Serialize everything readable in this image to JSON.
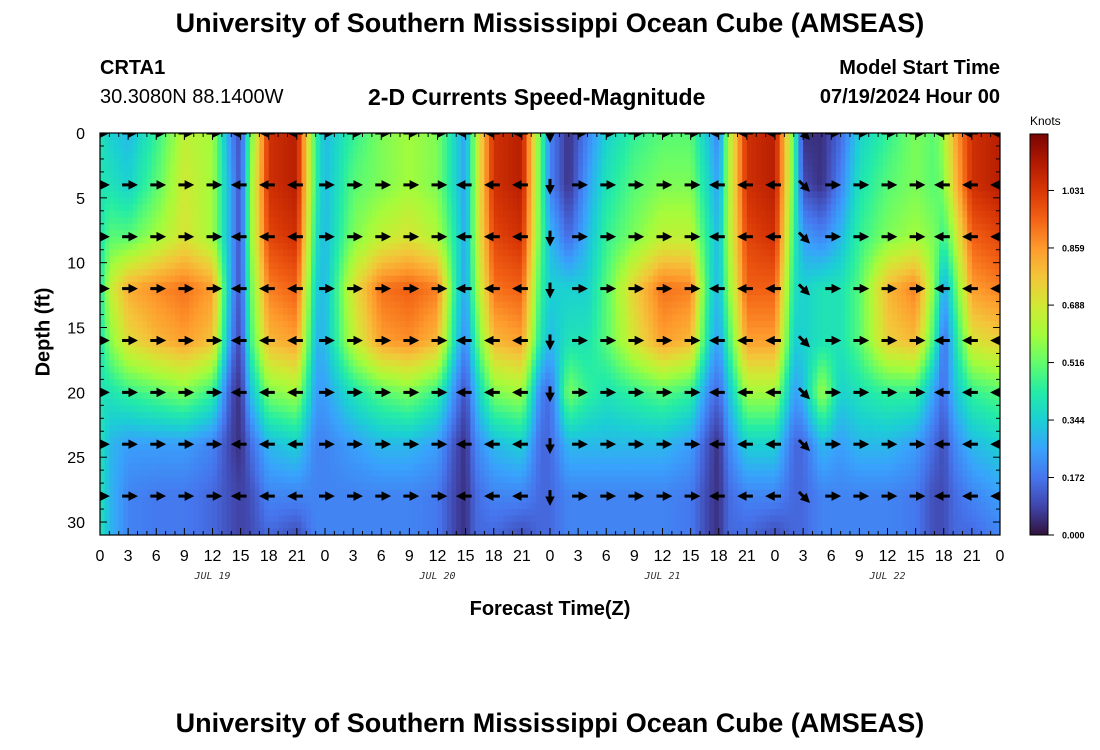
{
  "header": {
    "title": "University of Southern Mississippi Ocean Cube (AMSEAS)",
    "station_id": "CRTA1",
    "station_coords": "30.3080N  88.1400W",
    "plot_title": "2-D Currents Speed-Magnitude",
    "model_label": "Model Start Time",
    "model_date": "07/19/2024 Hour 00"
  },
  "footer": {
    "title": "University of Southern Mississippi Ocean Cube (AMSEAS)"
  },
  "colors": {
    "scale": [
      "#30123b",
      "#4145ab",
      "#4675ed",
      "#39a2fc",
      "#1bcfd4",
      "#24eca6",
      "#61fc6c",
      "#a4fc3b",
      "#d1e834",
      "#f3c63a",
      "#fe9b2d",
      "#f36315",
      "#d93806",
      "#b11901",
      "#7a0402"
    ]
  },
  "chart_data": {
    "type": "heatmap",
    "title": "2-D Currents Speed-Magnitude",
    "xlabel": "Forecast Time(Z)",
    "ylabel": "Depth (ft)",
    "x_range_hours": [
      0,
      96
    ],
    "x_tick_hours": [
      0,
      3,
      6,
      9,
      12,
      15,
      18,
      21,
      24,
      27,
      30,
      33,
      36,
      39,
      42,
      45,
      48,
      51,
      54,
      57,
      60,
      63,
      66,
      69,
      72,
      75,
      78,
      81,
      84,
      87,
      90,
      93,
      96
    ],
    "x_tick_labels": [
      "0",
      "3",
      "6",
      "9",
      "12",
      "15",
      "18",
      "21",
      "0",
      "3",
      "6",
      "9",
      "12",
      "15",
      "18",
      "21",
      "0",
      "3",
      "6",
      "9",
      "12",
      "15",
      "18",
      "21",
      "0",
      "3",
      "6",
      "9",
      "12",
      "15",
      "18",
      "21",
      "0"
    ],
    "date_labels": [
      {
        "hour": 12,
        "label": "JUL 19"
      },
      {
        "hour": 36,
        "label": "JUL 20"
      },
      {
        "hour": 60,
        "label": "JUL 21"
      },
      {
        "hour": 84,
        "label": "JUL 22"
      }
    ],
    "y_range_ft": [
      0,
      31
    ],
    "y_ticks": [
      0,
      5,
      10,
      15,
      20,
      25,
      30
    ],
    "y_tick_labels": [
      "0",
      "5",
      "10",
      "15",
      "20",
      "25",
      "30"
    ],
    "colorbar": {
      "unit": "Knots",
      "range": [
        0,
        1.2
      ],
      "ticks": [
        0.0,
        0.172,
        0.344,
        0.516,
        0.688,
        0.859,
        1.031
      ],
      "tick_labels": [
        "0.000",
        "0.172",
        "0.344",
        "0.516",
        "0.688",
        "0.859",
        "1.031"
      ]
    },
    "depths_ft": [
      0,
      4,
      8,
      12,
      16,
      20,
      24,
      28,
      31
    ],
    "speed_profiles": [
      {
        "hour": 0,
        "values": [
          0.4,
          0.4,
          0.4,
          0.4,
          0.4,
          0.4,
          0.4,
          0.4,
          0.4
        ]
      },
      {
        "hour": 1,
        "values": [
          0.35,
          0.4,
          0.5,
          0.65,
          0.55,
          0.4,
          0.3,
          0.3,
          0.3
        ]
      },
      {
        "hour": 3,
        "values": [
          0.3,
          0.35,
          0.5,
          0.82,
          0.72,
          0.45,
          0.25,
          0.2,
          0.2
        ]
      },
      {
        "hour": 6,
        "values": [
          0.45,
          0.5,
          0.6,
          0.88,
          0.8,
          0.5,
          0.25,
          0.18,
          0.18
        ]
      },
      {
        "hour": 9,
        "values": [
          0.65,
          0.68,
          0.7,
          0.92,
          0.85,
          0.55,
          0.25,
          0.18,
          0.18
        ]
      },
      {
        "hour": 12,
        "values": [
          0.6,
          0.6,
          0.6,
          0.85,
          0.78,
          0.45,
          0.2,
          0.15,
          0.15
        ]
      },
      {
        "hour": 14,
        "values": [
          0.2,
          0.25,
          0.25,
          0.25,
          0.2,
          0.1,
          0.08,
          0.1,
          0.1
        ]
      },
      {
        "hour": 15,
        "values": [
          0.1,
          0.1,
          0.1,
          0.1,
          0.08,
          0.05,
          0.05,
          0.08,
          0.08
        ]
      },
      {
        "hour": 16,
        "values": [
          0.5,
          0.55,
          0.55,
          0.5,
          0.45,
          0.3,
          0.15,
          0.1,
          0.1
        ]
      },
      {
        "hour": 18,
        "values": [
          1.05,
          1.05,
          1.0,
          0.9,
          0.8,
          0.55,
          0.3,
          0.2,
          0.15
        ]
      },
      {
        "hour": 21,
        "values": [
          1.1,
          1.1,
          1.05,
          0.95,
          0.85,
          0.6,
          0.35,
          0.2,
          0.1
        ]
      },
      {
        "hour": 23,
        "values": [
          0.45,
          0.45,
          0.4,
          0.35,
          0.3,
          0.25,
          0.2,
          0.2,
          0.2
        ]
      },
      {
        "hour": 24,
        "values": [
          0.3,
          0.3,
          0.3,
          0.3,
          0.3,
          0.25,
          0.2,
          0.2,
          0.2
        ]
      },
      {
        "hour": 27,
        "values": [
          0.45,
          0.5,
          0.55,
          0.7,
          0.65,
          0.4,
          0.25,
          0.2,
          0.2
        ]
      },
      {
        "hour": 30,
        "values": [
          0.55,
          0.55,
          0.65,
          0.92,
          0.85,
          0.5,
          0.3,
          0.2,
          0.2
        ]
      },
      {
        "hour": 33,
        "values": [
          0.6,
          0.6,
          0.7,
          0.95,
          0.88,
          0.55,
          0.3,
          0.2,
          0.2
        ]
      },
      {
        "hour": 36,
        "values": [
          0.55,
          0.55,
          0.62,
          0.9,
          0.8,
          0.45,
          0.25,
          0.18,
          0.18
        ]
      },
      {
        "hour": 38,
        "values": [
          0.35,
          0.35,
          0.4,
          0.4,
          0.35,
          0.2,
          0.1,
          0.08,
          0.08
        ]
      },
      {
        "hour": 39,
        "values": [
          0.25,
          0.25,
          0.25,
          0.25,
          0.2,
          0.1,
          0.05,
          0.05,
          0.05
        ]
      },
      {
        "hour": 40,
        "values": [
          0.6,
          0.6,
          0.6,
          0.55,
          0.45,
          0.3,
          0.2,
          0.15,
          0.15
        ]
      },
      {
        "hour": 42,
        "values": [
          1.05,
          1.05,
          1.0,
          0.92,
          0.8,
          0.55,
          0.3,
          0.2,
          0.15
        ]
      },
      {
        "hour": 45,
        "values": [
          1.1,
          1.1,
          1.05,
          0.95,
          0.85,
          0.6,
          0.35,
          0.2,
          0.1
        ]
      },
      {
        "hour": 47,
        "values": [
          0.5,
          0.5,
          0.5,
          0.45,
          0.4,
          0.2,
          0.15,
          0.15,
          0.15
        ]
      },
      {
        "hour": 48,
        "values": [
          0.2,
          0.2,
          0.3,
          0.35,
          0.3,
          0.15,
          0.15,
          0.15,
          0.15
        ]
      },
      {
        "hour": 50,
        "values": [
          0.05,
          0.05,
          0.15,
          0.35,
          0.4,
          0.55,
          0.3,
          0.2,
          0.2
        ]
      },
      {
        "hour": 52,
        "values": [
          0.2,
          0.25,
          0.3,
          0.35,
          0.4,
          0.45,
          0.3,
          0.2,
          0.2
        ]
      },
      {
        "hour": 54,
        "values": [
          0.35,
          0.4,
          0.45,
          0.5,
          0.5,
          0.4,
          0.3,
          0.2,
          0.2
        ]
      },
      {
        "hour": 57,
        "values": [
          0.45,
          0.5,
          0.55,
          0.75,
          0.7,
          0.45,
          0.3,
          0.2,
          0.2
        ]
      },
      {
        "hour": 60,
        "values": [
          0.5,
          0.55,
          0.65,
          0.92,
          0.85,
          0.5,
          0.3,
          0.2,
          0.2
        ]
      },
      {
        "hour": 63,
        "values": [
          0.5,
          0.55,
          0.65,
          0.9,
          0.8,
          0.45,
          0.25,
          0.18,
          0.18
        ]
      },
      {
        "hour": 65,
        "values": [
          0.3,
          0.35,
          0.4,
          0.4,
          0.35,
          0.2,
          0.1,
          0.08,
          0.08
        ]
      },
      {
        "hour": 66,
        "values": [
          0.2,
          0.25,
          0.3,
          0.3,
          0.25,
          0.15,
          0.05,
          0.05,
          0.05
        ]
      },
      {
        "hour": 67,
        "values": [
          0.6,
          0.6,
          0.6,
          0.55,
          0.45,
          0.3,
          0.2,
          0.15,
          0.15
        ]
      },
      {
        "hour": 69,
        "values": [
          1.05,
          1.05,
          1.0,
          0.95,
          0.85,
          0.6,
          0.35,
          0.2,
          0.15
        ]
      },
      {
        "hour": 72,
        "values": [
          1.1,
          1.1,
          1.05,
          0.95,
          0.85,
          0.6,
          0.35,
          0.2,
          0.1
        ]
      },
      {
        "hour": 74,
        "values": [
          0.5,
          0.5,
          0.45,
          0.4,
          0.35,
          0.25,
          0.15,
          0.15,
          0.15
        ]
      },
      {
        "hour": 75,
        "values": [
          0.05,
          0.1,
          0.25,
          0.35,
          0.35,
          0.3,
          0.15,
          0.15,
          0.15
        ]
      },
      {
        "hour": 77,
        "values": [
          0.05,
          0.05,
          0.2,
          0.4,
          0.4,
          0.6,
          0.3,
          0.2,
          0.2
        ]
      },
      {
        "hour": 79,
        "values": [
          0.15,
          0.2,
          0.3,
          0.4,
          0.4,
          0.35,
          0.25,
          0.2,
          0.2
        ]
      },
      {
        "hour": 81,
        "values": [
          0.35,
          0.4,
          0.45,
          0.5,
          0.5,
          0.4,
          0.3,
          0.2,
          0.2
        ]
      },
      {
        "hour": 84,
        "values": [
          0.45,
          0.5,
          0.55,
          0.8,
          0.75,
          0.45,
          0.3,
          0.2,
          0.2
        ]
      },
      {
        "hour": 87,
        "values": [
          0.55,
          0.55,
          0.6,
          0.9,
          0.8,
          0.45,
          0.25,
          0.18,
          0.18
        ]
      },
      {
        "hour": 89,
        "values": [
          0.5,
          0.5,
          0.55,
          0.55,
          0.45,
          0.25,
          0.15,
          0.1,
          0.1
        ]
      },
      {
        "hour": 90,
        "values": [
          0.6,
          0.55,
          0.45,
          0.25,
          0.15,
          0.15,
          0.1,
          0.1,
          0.1
        ]
      },
      {
        "hour": 91,
        "values": [
          0.8,
          0.75,
          0.6,
          0.45,
          0.35,
          0.3,
          0.2,
          0.15,
          0.15
        ]
      },
      {
        "hour": 93,
        "values": [
          1.05,
          1.05,
          0.95,
          0.85,
          0.7,
          0.45,
          0.3,
          0.2,
          0.15
        ]
      },
      {
        "hour": 96,
        "values": [
          1.1,
          1.1,
          1.0,
          0.9,
          0.75,
          0.5,
          0.35,
          0.25,
          0.2
        ]
      }
    ],
    "vector_depths_ft": [
      0,
      4,
      8,
      12,
      16,
      20,
      24,
      28
    ],
    "vector_hours": [
      0,
      3,
      6,
      9,
      12,
      15,
      18,
      21,
      24,
      27,
      30,
      33,
      36,
      39,
      42,
      45,
      48,
      51,
      54,
      57,
      60,
      63,
      66,
      69,
      72,
      75,
      78,
      81,
      84,
      87,
      90,
      93,
      96
    ],
    "vector_directions": [
      "E",
      "E",
      "E",
      "E",
      "E",
      "W",
      "W",
      "W",
      "E",
      "E",
      "E",
      "E",
      "E",
      "W",
      "W",
      "W",
      "S",
      "E",
      "E",
      "E",
      "E",
      "E",
      "W",
      "W",
      "W",
      "SE",
      "E",
      "E",
      "E",
      "E",
      "W",
      "W",
      "W"
    ]
  }
}
